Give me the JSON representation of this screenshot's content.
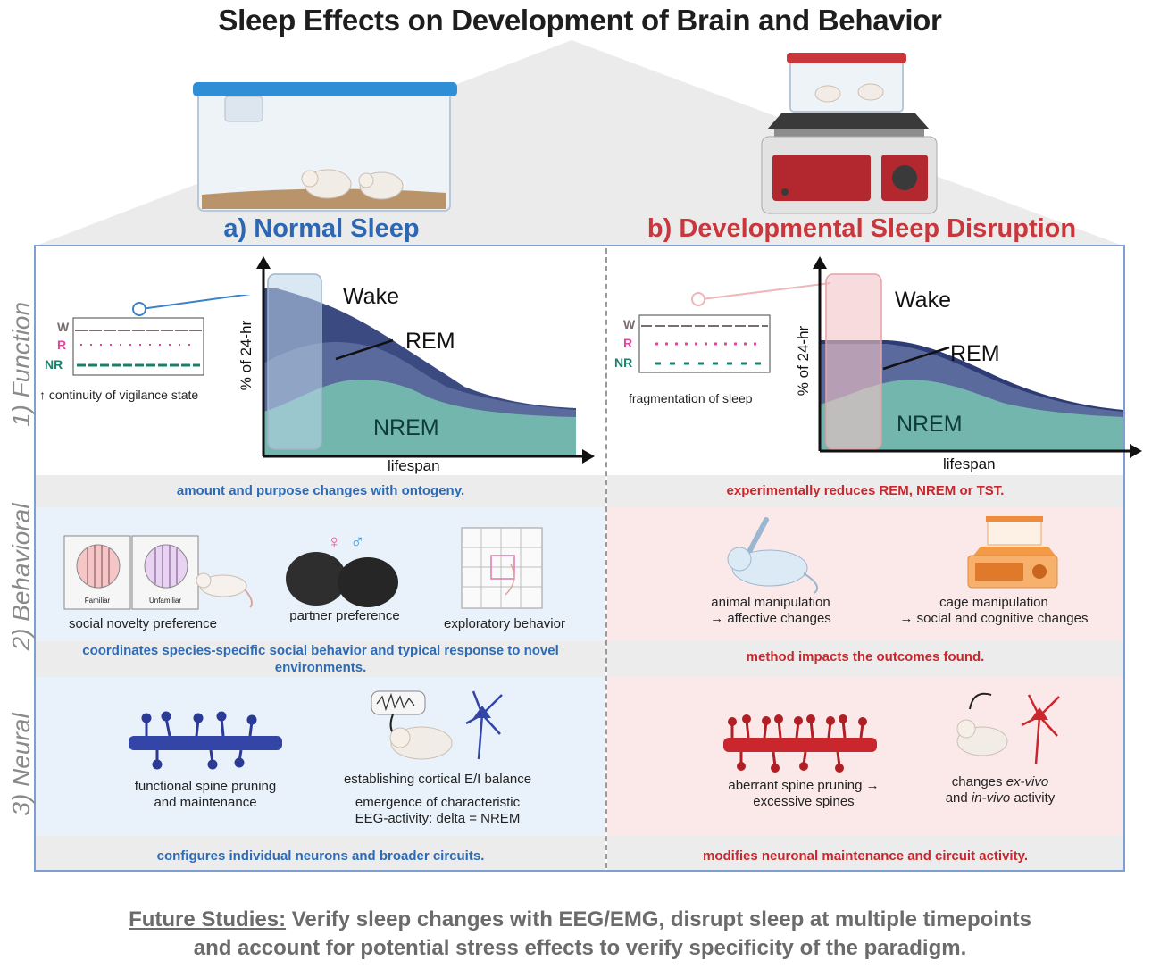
{
  "title": "Sleep Effects on Development of Brain and Behavior",
  "panels": {
    "a": {
      "title": "a) Normal Sleep"
    },
    "b": {
      "title": "b) Developmental Sleep Disruption"
    }
  },
  "rows": {
    "function": "1) Function",
    "behavioral": "2) Behavioral",
    "neural": "3) Neural"
  },
  "hypnogram": {
    "labels": {
      "w": "W",
      "r": "R",
      "nr": "NR"
    },
    "normal_caption": "↑ continuity of vigilance state",
    "disrupted_caption": "fragmentation of sleep"
  },
  "sleep_chart": {
    "ylabel": "% of 24-hr",
    "xlabel": "lifespan",
    "wake": "Wake",
    "rem": "REM",
    "nrem": "NREM"
  },
  "function_bands": {
    "normal": "amount and purpose changes with ontogeny.",
    "disrupted": "experimentally reduces REM, NREM or TST."
  },
  "behavioral": {
    "normal_items": [
      "social novelty preference",
      "partner preference",
      "exploratory behavior"
    ],
    "cage_labels": [
      "Familiar",
      "Unfamiliar"
    ],
    "sex_symbols": [
      "♀",
      "♂"
    ],
    "normal_band": "coordinates species-specific social behavior and typical response to novel environments.",
    "disrupted_items": [
      {
        "line1": "animal manipulation",
        "line2": "→ affective changes"
      },
      {
        "line1": "cage manipulation",
        "line2": "→ social and cognitive changes"
      }
    ],
    "disrupted_band": "method impacts the outcomes found."
  },
  "neural": {
    "spine_normal": {
      "line1": "functional spine pruning",
      "line2": "and maintenance"
    },
    "ei": {
      "line1": "establishing cortical E/I balance",
      "line2": "emergence of characteristic",
      "line3": "EEG-activity: delta = NREM"
    },
    "spine_disrupted": {
      "line1": "aberrant spine pruning →",
      "line2": "excessive spines"
    },
    "activity": {
      "pre": "changes ",
      "ex": "ex-vivo",
      "and": "and ",
      "in": "in-vivo",
      "post": " activity"
    },
    "normal_band": "configures individual neurons and broader circuits.",
    "disrupted_band": "modifies neuronal maintenance and circuit activity."
  },
  "footer": {
    "lead": "Future Studies:",
    "line1": " Verify sleep changes with EEG/EMG, disrupt sleep at multiple timepoints",
    "line2": "and account for potential stress effects to verify specificity of the paradigm."
  },
  "colors": {
    "blue": "#2c67b3",
    "red": "#c9363c",
    "wake_area": "#3b4b82",
    "rem_area": "#4f5f92",
    "nrem_area": "#6fb3ad"
  }
}
